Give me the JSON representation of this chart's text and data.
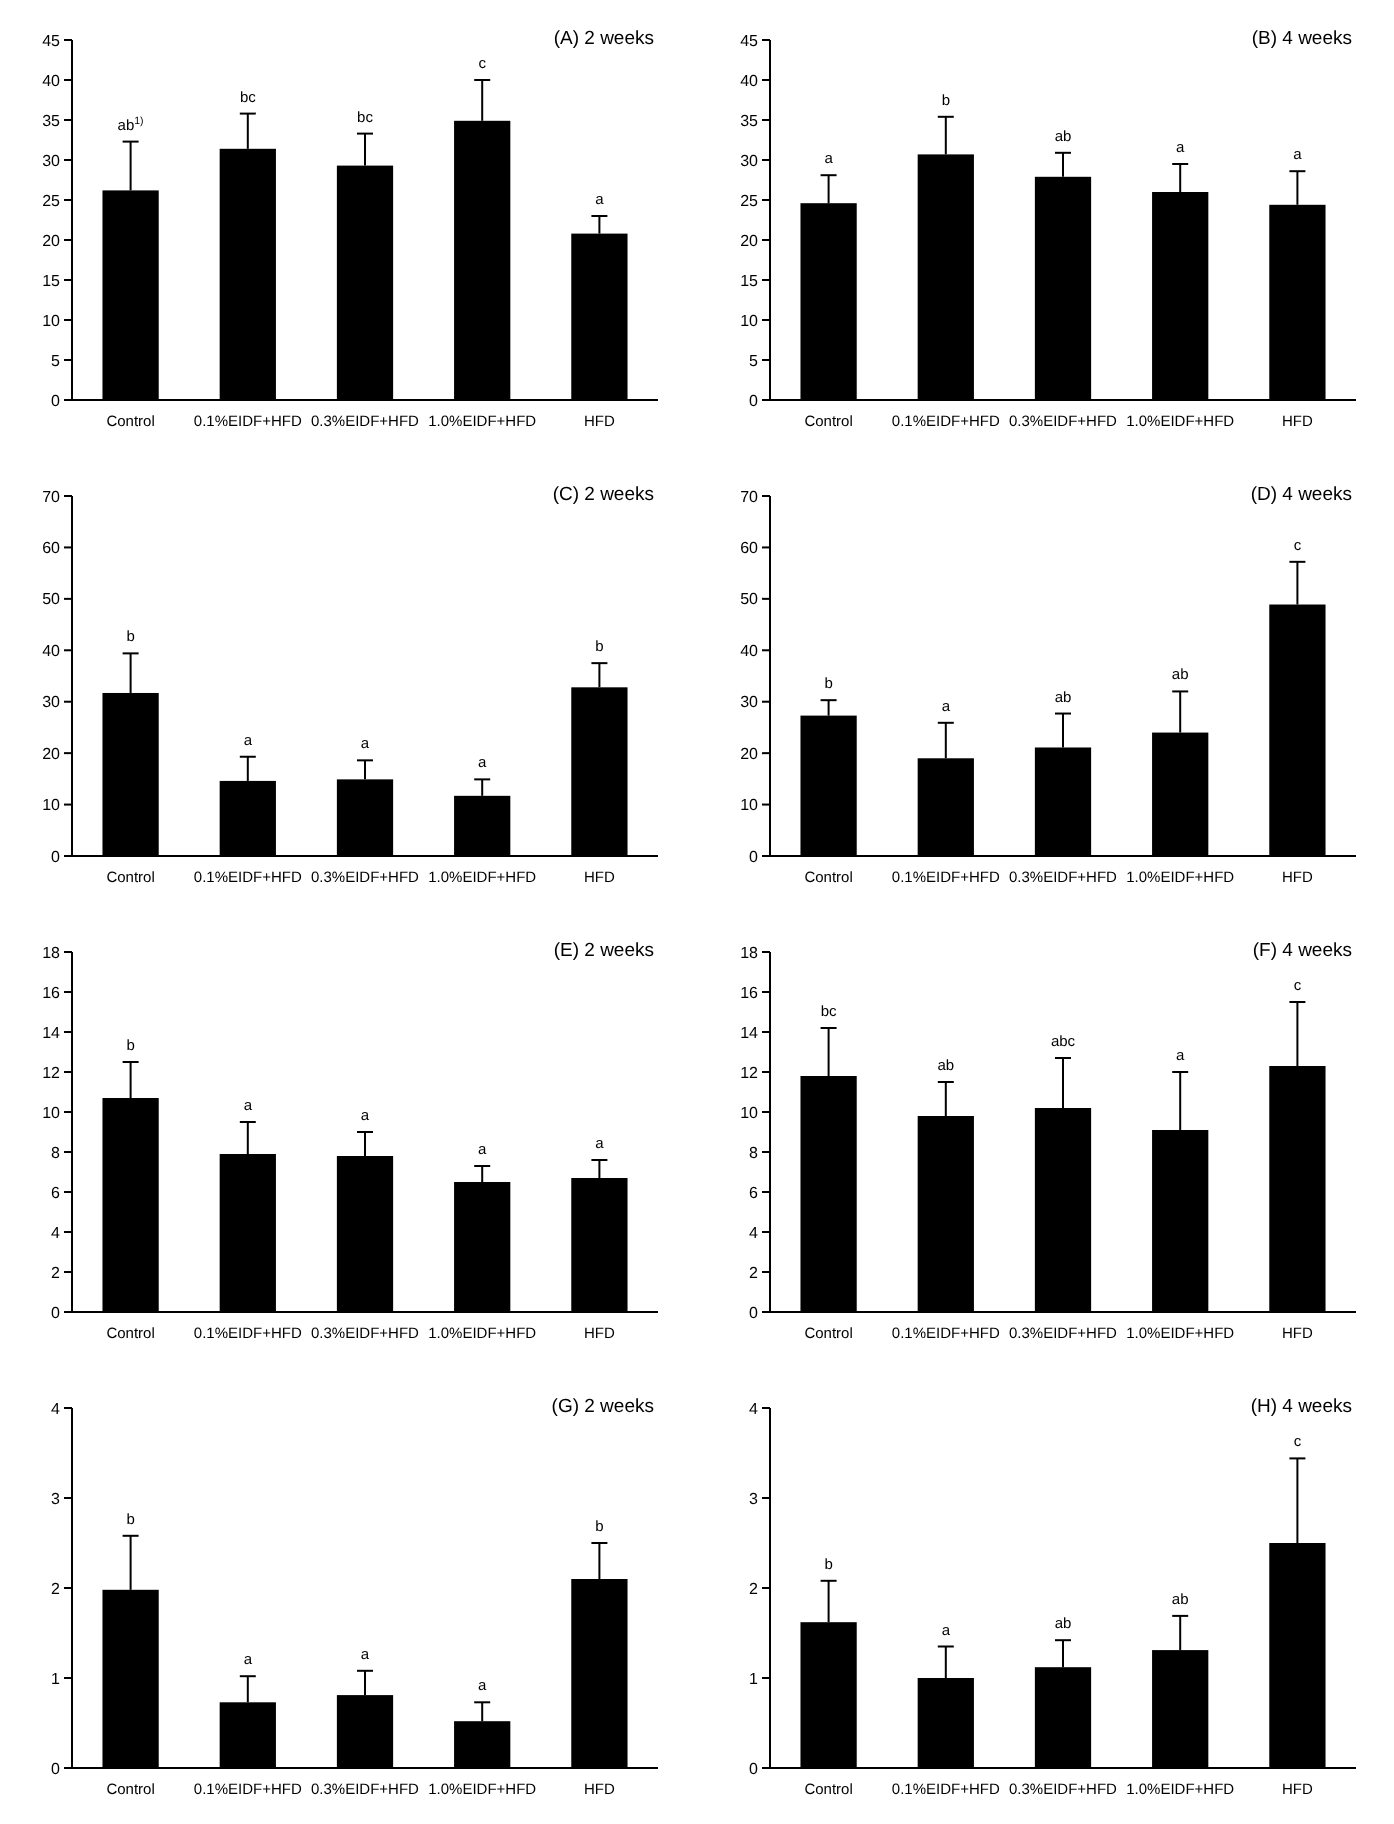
{
  "chart_data": [
    {
      "type": "bar",
      "title": "(A) 2 weeks",
      "categories": [
        "Control",
        "0.1%EIDF+HFD",
        "0.3%EIDF+HFD",
        "1.0%EIDF+HFD",
        "HFD"
      ],
      "values": [
        26.2,
        31.4,
        29.3,
        34.9,
        20.8
      ],
      "errors": [
        6.1,
        4.4,
        4.0,
        5.1,
        2.2
      ],
      "color": "#000000",
      "ylim": [
        0,
        45
      ],
      "yticks": [
        0,
        5,
        10,
        15,
        20,
        25,
        30,
        35,
        40,
        45
      ],
      "annotations": [
        {
          "text": "ab$^{1)}$",
          "x": "Control",
          "y": 32.3
        },
        {
          "text": "bc",
          "x": "0.1%EIDF+HFD",
          "y": 35.8
        },
        {
          "text": "bc",
          "x": "0.3%EIDF+HFD",
          "y": 33.3
        },
        {
          "text": "c",
          "x": "1.0%EIDF+HFD",
          "y": 40
        },
        {
          "text": "a",
          "x": "HFD",
          "y": 23
        }
      ]
    },
    {
      "type": "bar",
      "title": "(B) 4 weeks",
      "categories": [
        "Control",
        "0.1%EIDF+HFD",
        "0.3%EIDF+HFD",
        "1.0%EIDF+HFD",
        "HFD"
      ],
      "values": [
        24.6,
        30.7,
        27.9,
        26,
        24.4
      ],
      "errors": [
        3.5,
        4.7,
        3.0,
        3.5,
        4.2
      ],
      "color": "#000000",
      "ylim": [
        0,
        45
      ],
      "yticks": [
        0,
        5,
        10,
        15,
        20,
        25,
        30,
        35,
        40,
        45
      ],
      "annotations": [
        {
          "text": "a",
          "x": "Control",
          "y": 28.1
        },
        {
          "text": "b",
          "x": "0.1%EIDF+HFD",
          "y": 35.4
        },
        {
          "text": "ab",
          "x": "0.3%EIDF+HFD",
          "y": 30.9
        },
        {
          "text": "a",
          "x": "1.0%EIDF+HFD",
          "y": 29.5
        },
        {
          "text": "a",
          "x": "HFD",
          "y": 28.6
        }
      ]
    },
    {
      "type": "bar",
      "title": "(C) 2 weeks",
      "categories": [
        "Control",
        "0.1%EIDF+HFD",
        "0.3%EIDF+HFD",
        "1.0%EIDF+HFD",
        "HFD"
      ],
      "values": [
        31.7,
        14.6,
        14.9,
        11.7,
        32.8
      ],
      "errors": [
        7.7,
        4.7,
        3.7,
        3.2,
        4.7
      ],
      "color": "#000000",
      "ylim": [
        0,
        70
      ],
      "yticks": [
        0,
        10,
        20,
        30,
        40,
        50,
        60,
        70
      ],
      "annotations": [
        {
          "text": "b",
          "x": "Control",
          "y": 39.4
        },
        {
          "text": "a",
          "x": "0.1%EIDF+HFD",
          "y": 19.3
        },
        {
          "text": "a",
          "x": "0.3%EIDF+HFD",
          "y": 18.6
        },
        {
          "text": "a",
          "x": "1.0%EIDF+HFD",
          "y": 14.9
        },
        {
          "text": "b",
          "x": "HFD",
          "y": 37.5
        }
      ]
    },
    {
      "type": "bar",
      "title": "(D) 4 weeks",
      "categories": [
        "Control",
        "0.1%EIDF+HFD",
        "0.3%EIDF+HFD",
        "1.0%EIDF+HFD",
        "HFD"
      ],
      "values": [
        27.3,
        19,
        21.1,
        24,
        48.9
      ],
      "errors": [
        3.0,
        6.9,
        6.6,
        8.0,
        8.3
      ],
      "color": "#000000",
      "ylim": [
        0,
        70
      ],
      "yticks": [
        0,
        10,
        20,
        30,
        40,
        50,
        60,
        70
      ],
      "annotations": [
        {
          "text": "b",
          "x": "Control",
          "y": 30.3
        },
        {
          "text": "a",
          "x": "0.1%EIDF+HFD",
          "y": 25.9
        },
        {
          "text": "ab",
          "x": "0.3%EIDF+HFD",
          "y": 27.7
        },
        {
          "text": "ab",
          "x": "1.0%EIDF+HFD",
          "y": 32
        },
        {
          "text": "c",
          "x": "HFD",
          "y": 57.2
        }
      ]
    },
    {
      "type": "bar",
      "title": "(E) 2 weeks",
      "categories": [
        "Control",
        "0.1%EIDF+HFD",
        "0.3%EIDF+HFD",
        "1.0%EIDF+HFD",
        "HFD"
      ],
      "values": [
        10.7,
        7.9,
        7.8,
        6.5,
        6.7
      ],
      "errors": [
        1.8,
        1.6,
        1.2,
        0.8,
        0.9
      ],
      "color": "#000000",
      "ylim": [
        0,
        18
      ],
      "yticks": [
        0,
        2,
        4,
        6,
        8,
        10,
        12,
        14,
        16,
        18
      ],
      "annotations": [
        {
          "text": "b",
          "x": "Control",
          "y": 12.5
        },
        {
          "text": "a",
          "x": "0.1%EIDF+HFD",
          "y": 9.5
        },
        {
          "text": "a",
          "x": "0.3%EIDF+HFD",
          "y": 9.0
        },
        {
          "text": "a",
          "x": "1.0%EIDF+HFD",
          "y": 7.3
        },
        {
          "text": "a",
          "x": "HFD",
          "y": 7.6
        }
      ]
    },
    {
      "type": "bar",
      "title": "(F) 4 weeks",
      "categories": [
        "Control",
        "0.1%EIDF+HFD",
        "0.3%EIDF+HFD",
        "1.0%EIDF+HFD",
        "HFD"
      ],
      "values": [
        11.8,
        9.8,
        10.2,
        9.1,
        12.3
      ],
      "errors": [
        2.4,
        1.7,
        2.5,
        2.9,
        3.2
      ],
      "color": "#000000",
      "ylim": [
        0,
        18
      ],
      "yticks": [
        0,
        2,
        4,
        6,
        8,
        10,
        12,
        14,
        16,
        18
      ],
      "annotations": [
        {
          "text": "bc",
          "x": "Control",
          "y": 14.2
        },
        {
          "text": "ab",
          "x": "0.1%EIDF+HFD",
          "y": 11.5
        },
        {
          "text": "abc",
          "x": "0.3%EIDF+HFD",
          "y": 12.7
        },
        {
          "text": "a",
          "x": "1.0%EIDF+HFD",
          "y": 12
        },
        {
          "text": "c",
          "x": "HFD",
          "y": 15.5
        }
      ]
    },
    {
      "type": "bar",
      "title": "(G) 2 weeks",
      "categories": [
        "Control",
        "0.1%EIDF+HFD",
        "0.3%EIDF+HFD",
        "1.0%EIDF+HFD",
        "HFD"
      ],
      "values": [
        1.98,
        0.73,
        0.81,
        0.52,
        2.1
      ],
      "errors": [
        0.6,
        0.29,
        0.27,
        0.21,
        0.4
      ],
      "color": "#000000",
      "ylim": [
        0,
        4
      ],
      "yticks": [
        0,
        1,
        2,
        3,
        4
      ],
      "annotations": [
        {
          "text": "b",
          "x": "Control",
          "y": 2.58
        },
        {
          "text": "a",
          "x": "0.1%EIDF+HFD",
          "y": 1.02
        },
        {
          "text": "a",
          "x": "0.3%EIDF+HFD",
          "y": 1.08
        },
        {
          "text": "a",
          "x": "1.0%EIDF+HFD",
          "y": 0.73
        },
        {
          "text": "b",
          "x": "HFD",
          "y": 2.5
        }
      ]
    },
    {
      "type": "bar",
      "title": "(H) 4 weeks",
      "categories": [
        "Control",
        "0.1%EIDF+HFD",
        "0.3%EIDF+HFD",
        "1.0%EIDF+HFD",
        "HFD"
      ],
      "values": [
        1.62,
        1.0,
        1.12,
        1.31,
        2.5
      ],
      "errors": [
        0.46,
        0.35,
        0.3,
        0.38,
        0.94
      ],
      "color": "#000000",
      "ylim": [
        0,
        4
      ],
      "yticks": [
        0,
        1,
        2,
        3,
        4
      ],
      "annotations": [
        {
          "text": "b",
          "x": "Control",
          "y": 2.08
        },
        {
          "text": "a",
          "x": "0.1%EIDF+HFD",
          "y": 1.35
        },
        {
          "text": "ab",
          "x": "0.3%EIDF+HFD",
          "y": 1.42
        },
        {
          "text": "ab",
          "x": "1.0%EIDF+HFD",
          "y": 1.69
        },
        {
          "text": "c",
          "x": "HFD",
          "y": 3.44
        }
      ]
    }
  ]
}
